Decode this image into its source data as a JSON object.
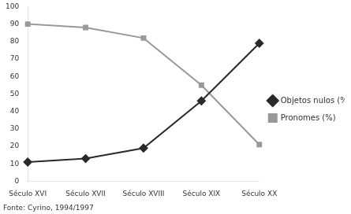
{
  "chart_data": {
    "type": "line",
    "categories": [
      "Século XVI",
      "Século XVII",
      "Século XVIII",
      "Século XIX",
      "Século XX"
    ],
    "series": [
      {
        "name": "Objetos nulos (%)",
        "color": "#2a2a2a",
        "marker": "diamond",
        "values": [
          11,
          13,
          19,
          46,
          79
        ]
      },
      {
        "name": "Pronomes (%)",
        "color": "#999999",
        "marker": "square",
        "values": [
          90,
          88,
          82,
          55,
          21
        ]
      }
    ],
    "ylim": [
      0,
      100
    ],
    "yticks": [
      0,
      10,
      20,
      30,
      40,
      50,
      60,
      70,
      80,
      90,
      100
    ],
    "grid": false,
    "legend": "right",
    "annotation": "Fonte: Cyrino, 1994/1997"
  }
}
